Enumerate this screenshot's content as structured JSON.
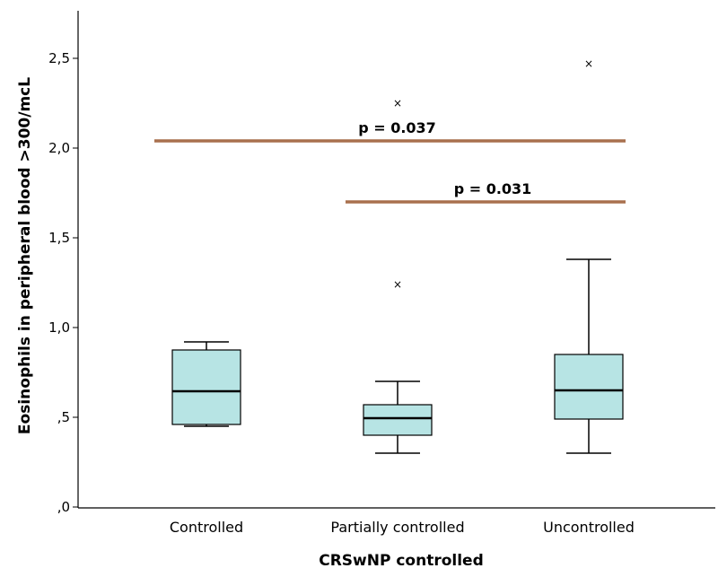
{
  "chart_data": {
    "type": "boxplot",
    "xlabel": "CRSwNP controlled",
    "ylabel": "Eosinophils in peripheral blood >300/mcL",
    "ylim": [
      0,
      2.75
    ],
    "yticks": [
      0,
      0.5,
      1.0,
      1.5,
      2.0,
      2.5
    ],
    "ytick_labels": [
      ",0",
      ",5",
      "1,0",
      "1,5",
      "2,0",
      "2,5"
    ],
    "categories": [
      "Controlled",
      "Partially controlled",
      "Uncontrolled"
    ],
    "boxes": [
      {
        "category": "Controlled",
        "whisker_low": 0.45,
        "q1": 0.46,
        "median": 0.645,
        "q3": 0.875,
        "whisker_high": 0.92,
        "outliers": []
      },
      {
        "category": "Partially controlled",
        "whisker_low": 0.3,
        "q1": 0.4,
        "median": 0.495,
        "q3": 0.57,
        "whisker_high": 0.7,
        "outliers": [
          1.24,
          2.25
        ]
      },
      {
        "category": "Uncontrolled",
        "whisker_low": 0.3,
        "q1": 0.49,
        "median": 0.65,
        "q3": 0.85,
        "whisker_high": 1.38,
        "outliers": [
          2.47
        ]
      }
    ],
    "box_color": "#b7e4e4",
    "outlier_marker": "×",
    "annotations": [
      {
        "label": "p = 0.037",
        "from": "Controlled",
        "to": "Uncontrolled",
        "y": 2.04,
        "color": "#a9704e"
      },
      {
        "label": "p = 0.031",
        "from": "Partially controlled",
        "to": "Uncontrolled",
        "y": 1.7,
        "color": "#a9704e"
      }
    ]
  }
}
